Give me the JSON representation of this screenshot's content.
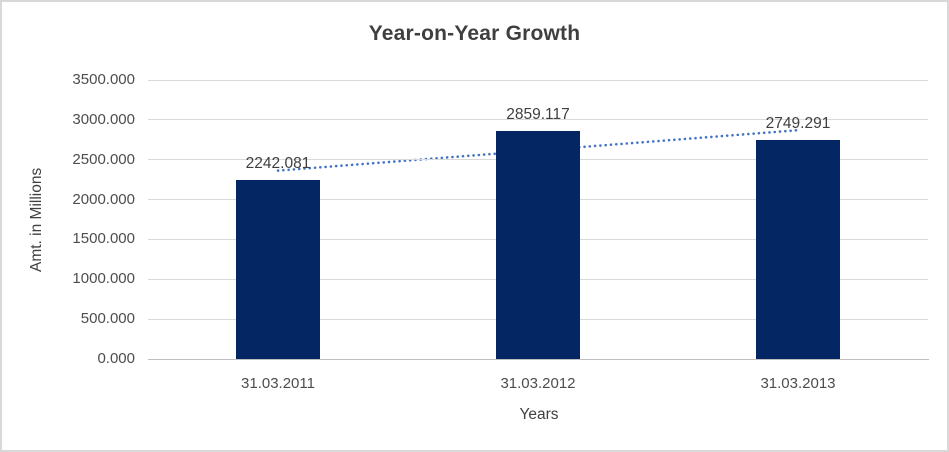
{
  "window": {
    "background": "#FFFFFF",
    "border_color": "#D8D8D8"
  },
  "chart_data": {
    "type": "bar",
    "title": "Year-on-Year Growth",
    "categories": [
      "31.03.2011",
      "31.03.2012",
      "31.03.2013"
    ],
    "values": [
      2242.081,
      2859.117,
      2749.291
    ],
    "data_labels": [
      "2242.081",
      "2859.117",
      "2749.291"
    ],
    "xlabel": "Years",
    "ylabel": "Amt. in Millions",
    "ylim": [
      0,
      3500
    ],
    "ytick_step": 500,
    "ytick_labels": [
      "0.000",
      "500.000",
      "1000.000",
      "1500.000",
      "2000.000",
      "2500.000",
      "3000.000",
      "3500.000"
    ],
    "grid": true,
    "legend": false,
    "bar_color": "#042663",
    "trendline": {
      "type": "linear",
      "style": "dotted",
      "color": "#4472C4",
      "y_at_first_category": 2363.2,
      "y_at_last_category": 2870.4
    },
    "colors": {
      "gridline": "#D9D9D9",
      "axis_line": "#BFBFBF",
      "title_text": "#3F3F3F",
      "tick_text": "#4D4D4D",
      "data_label_text": "#404040",
      "axis_title_text": "#404040"
    }
  }
}
